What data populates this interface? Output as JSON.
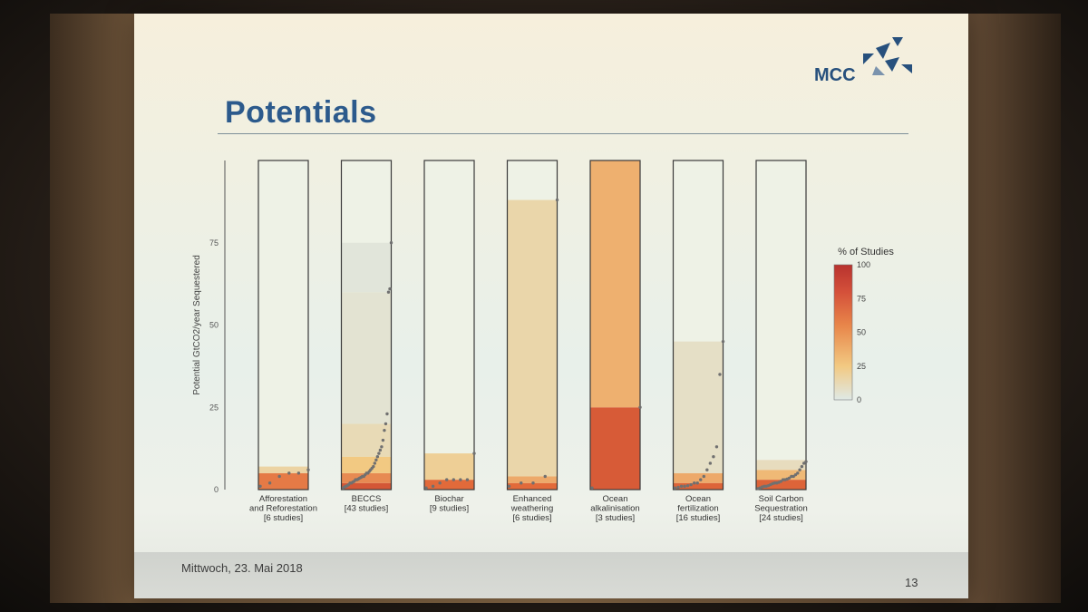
{
  "slide": {
    "title": "Potentials",
    "logo": "MCC",
    "footer_date": "Mittwoch, 23. Mai 2018",
    "page_number": "13"
  },
  "colors": {
    "title": "#2c5a8c",
    "scale_high": "#b8322e",
    "scale_mid": "#e26a3a",
    "scale_low": "#f2c982",
    "scale_zero": "#dfe9e6",
    "dots": "#707070"
  },
  "chart_data": {
    "type": "bar",
    "ylabel": "Potential GtCO2/year Sequestered",
    "ylim": [
      0,
      100
    ],
    "yticks": [
      0,
      25,
      50,
      75
    ],
    "colorbar": {
      "title": "% of Studies",
      "ticks": [
        0,
        25,
        50,
        75,
        100
      ]
    },
    "categories": [
      {
        "lines": [
          "Afforestation",
          "and Reforestation",
          "[6 studies]"
        ],
        "studies": 6,
        "bands": [
          {
            "to": 5,
            "pct": 50
          },
          {
            "to": 7,
            "pct": 17
          }
        ],
        "points": [
          1,
          2,
          4,
          5,
          5,
          6
        ]
      },
      {
        "lines": [
          "BECCS",
          "[43 studies]"
        ],
        "studies": 43,
        "bands": [
          {
            "to": 2,
            "pct": 70
          },
          {
            "to": 5,
            "pct": 45
          },
          {
            "to": 10,
            "pct": 25
          },
          {
            "to": 20,
            "pct": 12
          },
          {
            "to": 60,
            "pct": 5
          },
          {
            "to": 75,
            "pct": 3
          }
        ],
        "points": [
          0.5,
          0.8,
          1,
          1.2,
          1.5,
          2,
          2,
          2.3,
          2.5,
          3,
          3,
          3.2,
          3.5,
          3.7,
          4,
          4,
          4.5,
          5,
          5,
          5.5,
          6,
          6.5,
          7,
          8,
          9,
          10,
          11,
          12,
          13,
          15,
          18,
          20,
          23,
          60,
          61,
          75
        ]
      },
      {
        "lines": [
          "Biochar",
          "[9 studies]"
        ],
        "studies": 9,
        "bands": [
          {
            "to": 3,
            "pct": 55
          },
          {
            "to": 11,
            "pct": 20
          }
        ],
        "points": [
          0.5,
          1,
          2,
          3,
          3,
          3,
          3,
          11
        ]
      },
      {
        "lines": [
          "Enhanced",
          "weathering",
          "[6 studies]"
        ],
        "studies": 6,
        "bands": [
          {
            "to": 2,
            "pct": 55
          },
          {
            "to": 4,
            "pct": 35
          },
          {
            "to": 88,
            "pct": 15
          }
        ],
        "points": [
          1,
          2,
          2,
          4,
          88
        ]
      },
      {
        "lines": [
          "Ocean",
          "alkalinisation",
          "[3 studies]"
        ],
        "studies": 3,
        "bands": [
          {
            "to": 25,
            "pct": 67
          },
          {
            "to": 100,
            "pct": 33
          }
        ],
        "points": [
          0.5,
          25
        ]
      },
      {
        "lines": [
          "Ocean",
          "fertilization",
          "[16 studies]"
        ],
        "studies": 16,
        "bands": [
          {
            "to": 2,
            "pct": 60
          },
          {
            "to": 5,
            "pct": 35
          },
          {
            "to": 45,
            "pct": 8
          }
        ],
        "points": [
          0.5,
          0.7,
          1,
          1,
          1.2,
          1.5,
          2,
          2,
          3,
          4,
          6,
          8,
          10,
          13,
          35,
          45
        ]
      },
      {
        "lines": [
          "Soil Carbon",
          "Sequestration",
          "[24 studies]"
        ],
        "studies": 24,
        "bands": [
          {
            "to": 3,
            "pct": 60
          },
          {
            "to": 6,
            "pct": 30
          },
          {
            "to": 9,
            "pct": 10
          }
        ],
        "points": [
          0.3,
          0.5,
          0.8,
          1,
          1,
          1.2,
          1.5,
          1.8,
          2,
          2,
          2.2,
          2.5,
          3,
          3,
          3.2,
          3.5,
          4,
          4,
          4.5,
          5,
          6,
          7,
          8,
          8.5
        ]
      }
    ]
  }
}
